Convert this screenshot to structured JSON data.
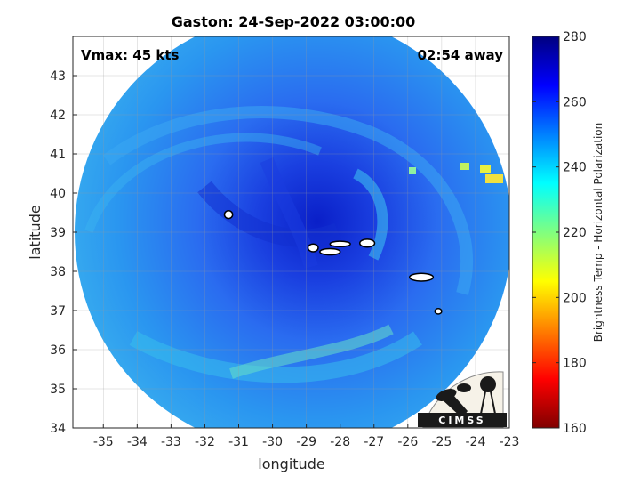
{
  "chart_data": {
    "type": "heatmap",
    "title": "Gaston: 24-Sep-2022 03:00:00",
    "xlabel": "longitude",
    "ylabel": "latitude",
    "xlim": [
      -35.9,
      -23
    ],
    "ylim": [
      34,
      44
    ],
    "x_ticks": [
      -35,
      -34,
      -33,
      -32,
      -31,
      -30,
      -29,
      -28,
      -27,
      -26,
      -25,
      -24,
      -23
    ],
    "y_ticks": [
      34,
      35,
      36,
      37,
      38,
      39,
      40,
      41,
      42,
      43
    ],
    "grid": true,
    "annotations": {
      "vmax": "Vmax: 45 kts",
      "time_away": "02:54 away"
    },
    "colorbar": {
      "label": "Brightness Temp - Horizontal Polarization",
      "min": 160,
      "max": 280,
      "ticks": [
        160,
        180,
        200,
        220,
        240,
        260,
        280
      ],
      "colormap": "jet"
    },
    "storm_center": [
      -28.6,
      38.6
    ],
    "cold_cloud_contours": [
      {
        "lon": -31.3,
        "lat": 39.45,
        "rx": 0.12,
        "ry": 0.1
      },
      {
        "lon": -28.8,
        "lat": 38.6,
        "rx": 0.15,
        "ry": 0.1
      },
      {
        "lon": -28.0,
        "lat": 38.7,
        "rx": 0.3,
        "ry": 0.07
      },
      {
        "lon": -28.3,
        "lat": 38.5,
        "rx": 0.3,
        "ry": 0.08
      },
      {
        "lon": -27.2,
        "lat": 38.72,
        "rx": 0.22,
        "ry": 0.1
      },
      {
        "lon": -25.6,
        "lat": 37.85,
        "rx": 0.35,
        "ry": 0.1
      },
      {
        "lon": -25.1,
        "lat": 36.98,
        "rx": 0.1,
        "ry": 0.07
      }
    ],
    "logo_text": "CIMSS"
  }
}
